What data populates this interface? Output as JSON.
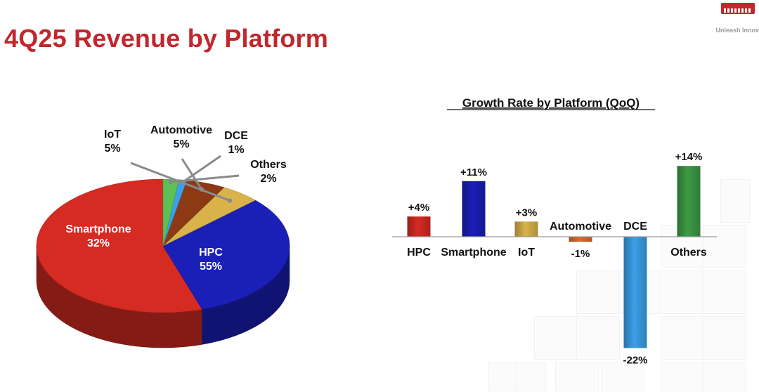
{
  "slide": {
    "title": "4Q25 Revenue by Platform",
    "tagline": "Unleash Innov"
  },
  "colors": {
    "title": "#c0282d",
    "hpc": "#d62b22",
    "smartphone": "#1a1fb8",
    "iot": "#d9b24a",
    "automotive": "#8b3a14",
    "dce": "#3aa0e8",
    "others": "#5cc055"
  },
  "chart_data": [
    {
      "type": "pie",
      "title": "",
      "slices": [
        {
          "name": "HPC",
          "value": 55,
          "label": "55%",
          "color": "#d62b22"
        },
        {
          "name": "Smartphone",
          "value": 32,
          "label": "32%",
          "color": "#1a1fb8"
        },
        {
          "name": "IoT",
          "value": 5,
          "label": "5%",
          "color": "#d9b24a"
        },
        {
          "name": "Automotive",
          "value": 5,
          "label": "5%",
          "color": "#8b3a14"
        },
        {
          "name": "DCE",
          "value": 1,
          "label": "1%",
          "color": "#3aa0e8"
        },
        {
          "name": "Others",
          "value": 2,
          "label": "2%",
          "color": "#5cc055"
        }
      ]
    },
    {
      "type": "bar",
      "title": "Growth Rate by Platform (QoQ)",
      "categories": [
        "HPC",
        "Smartphone",
        "IoT",
        "Automotive",
        "DCE",
        "Others"
      ],
      "values": [
        4,
        11,
        3,
        -1,
        -22,
        14
      ],
      "value_labels": [
        "+4%",
        "+11%",
        "+3%",
        "-1%",
        "-22%",
        "+14%"
      ],
      "colors": [
        "#d62b22",
        "#1a1fb8",
        "#d9b24a",
        "#e06a2c",
        "#3aa0e8",
        "#3d9b46"
      ],
      "ylim": [
        -22,
        14
      ],
      "grid": false,
      "legend": false
    }
  ]
}
